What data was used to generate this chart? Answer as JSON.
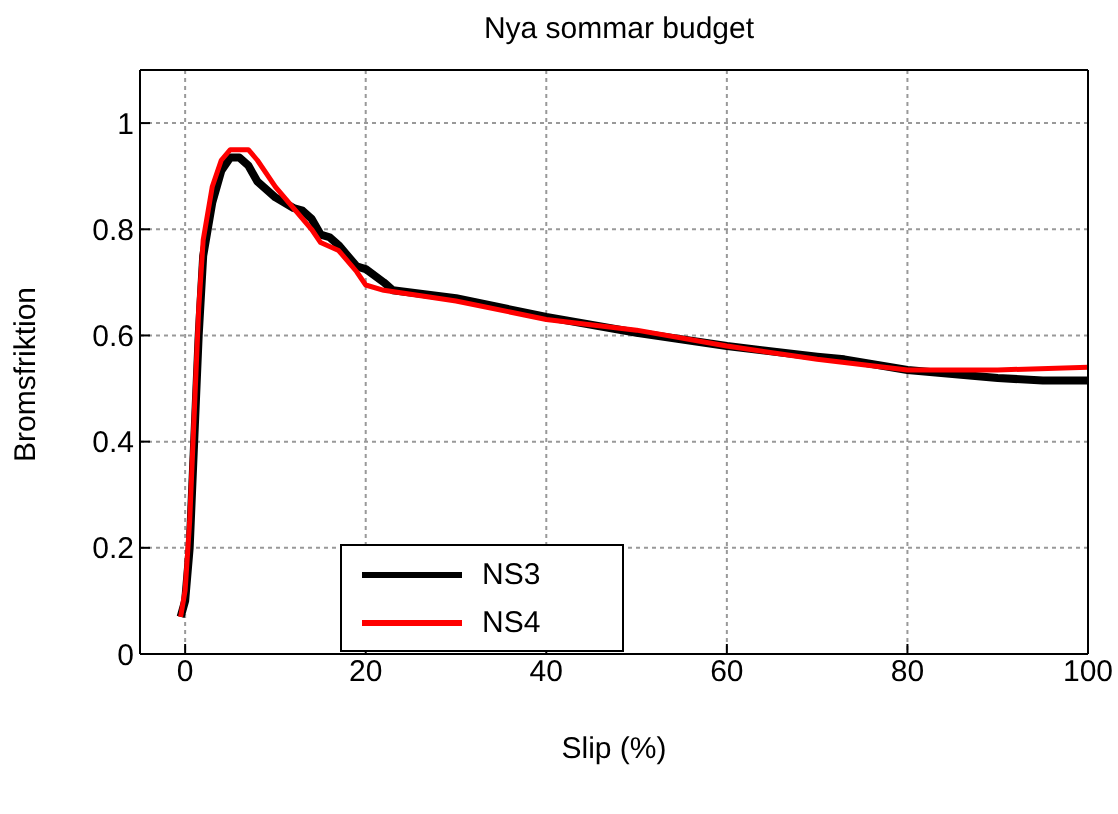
{
  "chart_data": {
    "type": "line",
    "title": "Nya sommar budget",
    "xlabel": "Slip (%)",
    "ylabel": "Bromsfriktion",
    "xlim": [
      -5,
      100
    ],
    "xticks": [
      0,
      20,
      40,
      60,
      80,
      100
    ],
    "ylim": [
      0,
      1.1
    ],
    "yticks": [
      0,
      0.2,
      0.4,
      0.6,
      0.8,
      1
    ],
    "grid": true,
    "legend": "bottom left",
    "series": [
      {
        "name": "NS3",
        "color": "#000000",
        "x": [
          -0.5,
          0,
          0.5,
          1,
          1.5,
          2,
          3,
          4,
          5,
          6,
          7,
          8,
          10,
          12,
          13,
          14,
          15,
          16,
          17,
          19,
          20,
          22,
          23,
          30,
          40,
          50,
          60,
          70,
          73,
          80,
          90,
          95,
          100
        ],
        "values": [
          0.07,
          0.1,
          0.2,
          0.4,
          0.6,
          0.75,
          0.85,
          0.91,
          0.935,
          0.935,
          0.92,
          0.89,
          0.86,
          0.84,
          0.835,
          0.82,
          0.79,
          0.785,
          0.77,
          0.73,
          0.725,
          0.7,
          0.685,
          0.67,
          0.635,
          0.605,
          0.58,
          0.56,
          0.555,
          0.535,
          0.52,
          0.515,
          0.515
        ]
      },
      {
        "name": "NS4",
        "color": "#ff0000",
        "x": [
          -0.5,
          0,
          0.5,
          1,
          1.5,
          2,
          3,
          4,
          5,
          7,
          8,
          10,
          12,
          14,
          15,
          17,
          19,
          20,
          22,
          30,
          40,
          50,
          60,
          70,
          80,
          90,
          100
        ],
        "values": [
          0.07,
          0.12,
          0.25,
          0.45,
          0.65,
          0.78,
          0.88,
          0.93,
          0.95,
          0.95,
          0.93,
          0.88,
          0.84,
          0.8,
          0.775,
          0.76,
          0.72,
          0.695,
          0.685,
          0.665,
          0.63,
          0.61,
          0.58,
          0.555,
          0.535,
          0.535,
          0.54
        ]
      }
    ]
  }
}
